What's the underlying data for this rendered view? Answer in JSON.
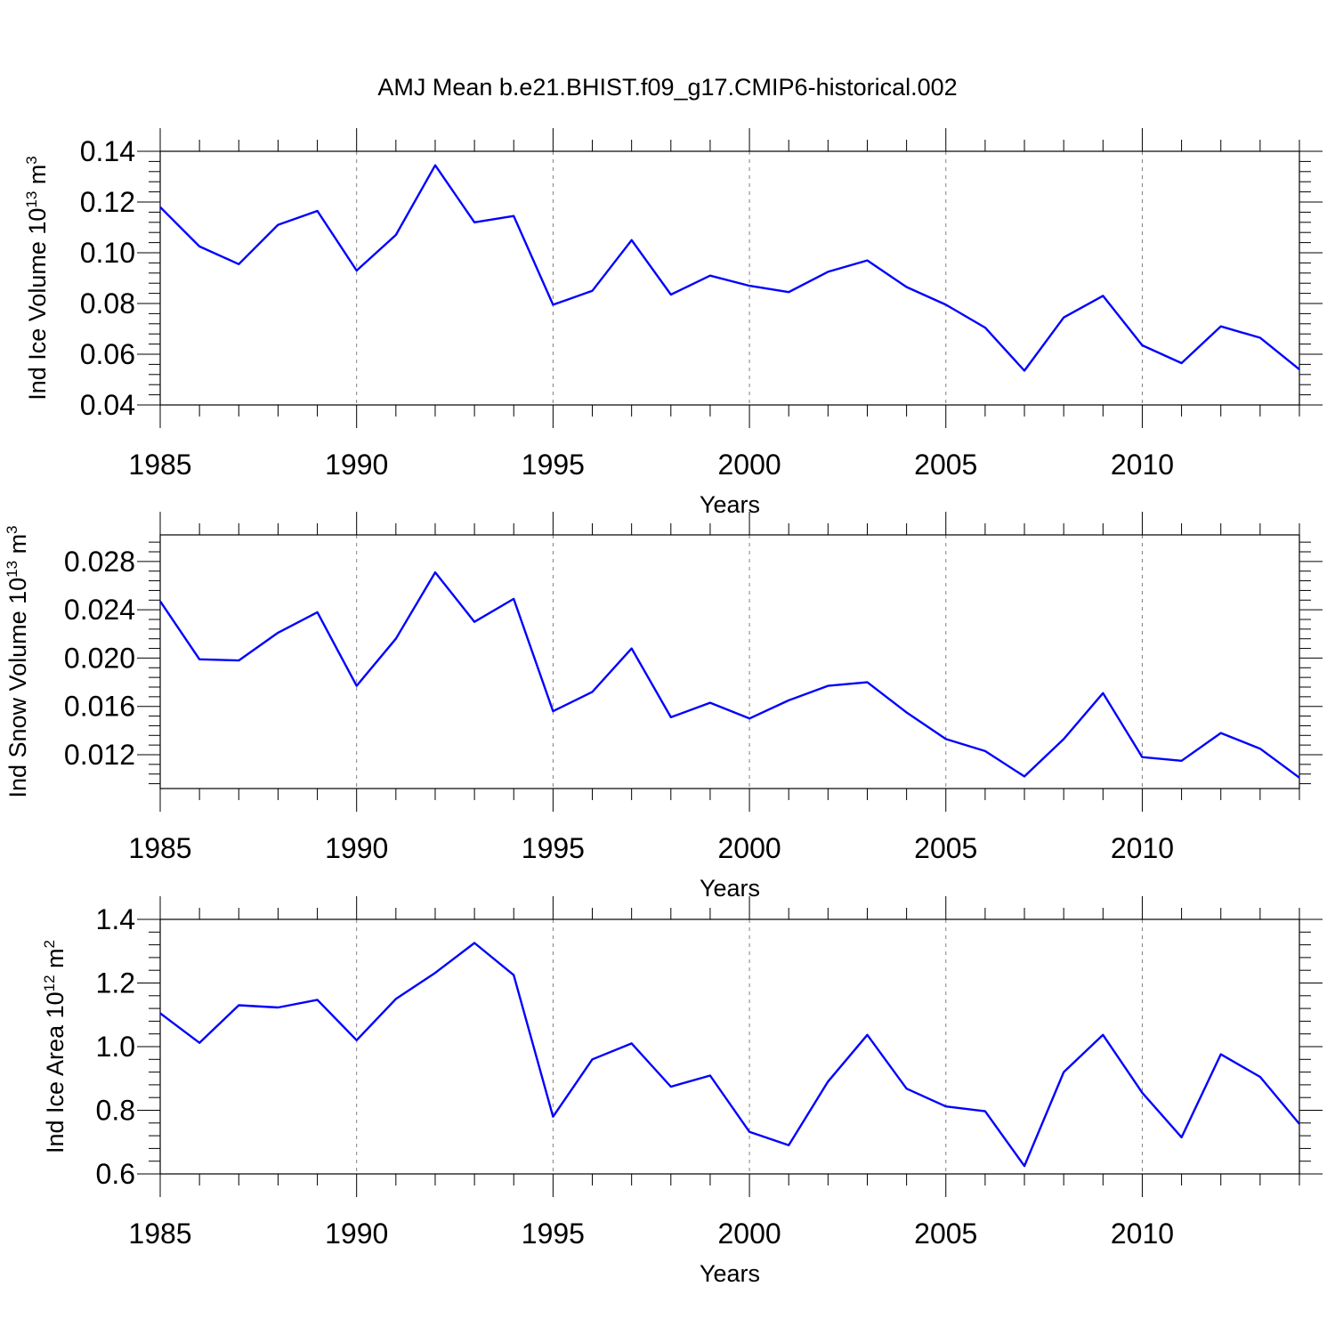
{
  "title": "AMJ Mean b.e21.BHIST.f09_g17.CMIP6-historical.002",
  "colors": {
    "line": "#0000ff",
    "grid": "#808080",
    "axis": "#000000"
  },
  "chart_data": [
    {
      "type": "line",
      "name": "ice-volume",
      "ylabel_main": "Ind Ice Volume 10",
      "ylabel_exp": "13",
      "ylabel_unit": " m",
      "ylabel_unit_exp": "3",
      "xlabel": "Years",
      "xlim": [
        1985,
        2014
      ],
      "ylim": [
        0.04,
        0.14
      ],
      "ymajor": [
        0.04,
        0.06,
        0.08,
        0.1,
        0.12,
        0.14
      ],
      "ytick_labels": [
        "0.04",
        "0.06",
        "0.08",
        "0.10",
        "0.12",
        "0.14"
      ],
      "xmajor": [
        1985,
        1990,
        1995,
        2000,
        2005,
        2010
      ],
      "xtick_labels": [
        "1985",
        "1990",
        "1995",
        "2000",
        "2005",
        "2010"
      ],
      "grid": "x-dashed",
      "x": [
        1985,
        1986,
        1987,
        1988,
        1989,
        1990,
        1991,
        1992,
        1993,
        1994,
        1995,
        1996,
        1997,
        1998,
        1999,
        2000,
        2001,
        2002,
        2003,
        2004,
        2005,
        2006,
        2007,
        2008,
        2009,
        2010,
        2011,
        2012,
        2013,
        2014
      ],
      "values": [
        0.118,
        0.1025,
        0.0955,
        0.111,
        0.1165,
        0.093,
        0.107,
        0.1345,
        0.112,
        0.1145,
        0.0795,
        0.085,
        0.105,
        0.0835,
        0.091,
        0.087,
        0.0845,
        0.0925,
        0.097,
        0.0865,
        0.0795,
        0.0705,
        0.0535,
        0.0745,
        0.083,
        0.0635,
        0.0565,
        0.071,
        0.0665,
        0.054
      ]
    },
    {
      "type": "line",
      "name": "snow-volume",
      "ylabel_main": "Ind Snow Volume 10",
      "ylabel_exp": "13",
      "ylabel_unit": " m",
      "ylabel_unit_exp": "3",
      "xlabel": "Years",
      "xlim": [
        1985,
        2014
      ],
      "ylim": [
        0.0092,
        0.0302
      ],
      "ymajor": [
        0.012,
        0.016,
        0.02,
        0.024,
        0.028
      ],
      "ytick_labels": [
        "0.012",
        "0.016",
        "0.020",
        "0.024",
        "0.028"
      ],
      "xmajor": [
        1985,
        1990,
        1995,
        2000,
        2005,
        2010
      ],
      "xtick_labels": [
        "1985",
        "1990",
        "1995",
        "2000",
        "2005",
        "2010"
      ],
      "grid": "x-dashed",
      "x": [
        1985,
        1986,
        1987,
        1988,
        1989,
        1990,
        1991,
        1992,
        1993,
        1994,
        1995,
        1996,
        1997,
        1998,
        1999,
        2000,
        2001,
        2002,
        2003,
        2004,
        2005,
        2006,
        2007,
        2008,
        2009,
        2010,
        2011,
        2012,
        2013,
        2014
      ],
      "values": [
        0.0247,
        0.0199,
        0.0198,
        0.0221,
        0.0238,
        0.0177,
        0.0216,
        0.0271,
        0.023,
        0.0249,
        0.0156,
        0.0172,
        0.0208,
        0.0151,
        0.0163,
        0.015,
        0.0165,
        0.0177,
        0.018,
        0.0155,
        0.0133,
        0.0123,
        0.0102,
        0.0133,
        0.0171,
        0.0118,
        0.0115,
        0.0138,
        0.0125,
        0.0101
      ]
    },
    {
      "type": "line",
      "name": "ice-area",
      "ylabel_main": "Ind Ice Area 10",
      "ylabel_exp": "12",
      "ylabel_unit": " m",
      "ylabel_unit_exp": "2",
      "xlabel": "Years",
      "xlim": [
        1985,
        2014
      ],
      "ylim": [
        0.6,
        1.4
      ],
      "ymajor": [
        0.6,
        0.8,
        1.0,
        1.2,
        1.4
      ],
      "ytick_labels": [
        "0.6",
        "0.8",
        "1.0",
        "1.2",
        "1.4"
      ],
      "xmajor": [
        1985,
        1990,
        1995,
        2000,
        2005,
        2010
      ],
      "xtick_labels": [
        "1985",
        "1990",
        "1995",
        "2000",
        "2005",
        "2010"
      ],
      "grid": "x-dashed",
      "x": [
        1985,
        1986,
        1987,
        1988,
        1989,
        1990,
        1991,
        1992,
        1993,
        1994,
        1995,
        1996,
        1997,
        1998,
        1999,
        2000,
        2001,
        2002,
        2003,
        2004,
        2005,
        2006,
        2007,
        2008,
        2009,
        2010,
        2011,
        2012,
        2013,
        2014
      ],
      "values": [
        1.105,
        1.012,
        1.13,
        1.123,
        1.147,
        1.02,
        1.15,
        1.232,
        1.326,
        1.225,
        0.78,
        0.96,
        1.01,
        0.874,
        0.909,
        0.732,
        0.69,
        0.89,
        1.037,
        0.868,
        0.812,
        0.797,
        0.625,
        0.92,
        1.037,
        0.855,
        0.715,
        0.976,
        0.905,
        0.757
      ]
    }
  ]
}
